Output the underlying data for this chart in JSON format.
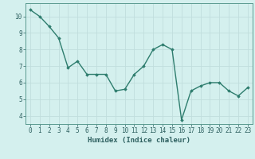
{
  "xlabel": "Humidex (Indice chaleur)",
  "x": [
    0,
    1,
    2,
    3,
    4,
    5,
    6,
    7,
    8,
    9,
    10,
    11,
    12,
    13,
    14,
    15,
    16,
    17,
    18,
    19,
    20,
    21,
    22,
    23
  ],
  "y": [
    10.4,
    10.0,
    9.4,
    8.7,
    6.9,
    7.3,
    6.5,
    6.5,
    6.5,
    5.5,
    5.6,
    6.5,
    7.0,
    8.0,
    8.3,
    8.0,
    3.75,
    5.5,
    5.8,
    6.0,
    6.0,
    5.5,
    5.2,
    5.7
  ],
  "line_color": "#2e7d6e",
  "marker": "D",
  "marker_size": 1.8,
  "bg_color": "#d4f0ee",
  "grid_color": "#c0dedd",
  "axis_label_color": "#2e6060",
  "tick_color": "#2e6060",
  "ylim": [
    3.5,
    10.8
  ],
  "xlim": [
    -0.5,
    23.5
  ],
  "yticks": [
    4,
    5,
    6,
    7,
    8,
    9,
    10
  ],
  "xticks": [
    0,
    1,
    2,
    3,
    4,
    5,
    6,
    7,
    8,
    9,
    10,
    11,
    12,
    13,
    14,
    15,
    16,
    17,
    18,
    19,
    20,
    21,
    22,
    23
  ],
  "linewidth": 1.0,
  "xlabel_fontsize": 6.5,
  "tick_fontsize": 5.5,
  "spine_color": "#5a9a90"
}
